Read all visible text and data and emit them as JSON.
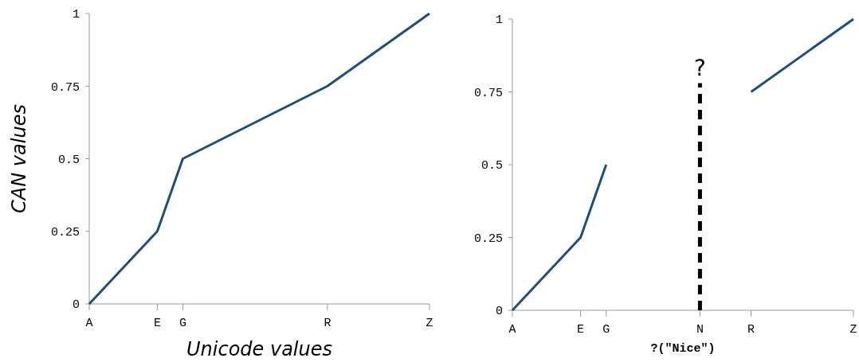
{
  "chart_data": [
    {
      "type": "line",
      "xlabel": "Unicode values",
      "ylabel": "CAN values",
      "categories": [
        "A",
        null,
        null,
        null,
        null,
        null,
        null,
        null,
        "E",
        null,
        null,
        "G",
        null,
        null,
        null,
        null,
        null,
        null,
        null,
        null,
        null,
        null,
        null,
        null,
        null,
        null,
        null,
        null,
        "R",
        null,
        null,
        null,
        null,
        null,
        null,
        null,
        null,
        null,
        null,
        null,
        "Z"
      ],
      "ylim": [
        0,
        1
      ],
      "yticks": [
        0,
        0.25,
        0.5,
        0.75,
        1
      ],
      "series": [
        {
          "color": "#1f4e79",
          "values": [
            0,
            null,
            null,
            null,
            null,
            null,
            null,
            null,
            0.25,
            null,
            null,
            0.5,
            null,
            null,
            null,
            null,
            null,
            null,
            null,
            null,
            null,
            null,
            null,
            null,
            null,
            null,
            null,
            null,
            0.75,
            null,
            null,
            null,
            null,
            null,
            null,
            null,
            null,
            null,
            null,
            null,
            1
          ]
        }
      ]
    },
    {
      "type": "line",
      "xlabel": "?(\"Nice\")",
      "categories": [
        "A",
        null,
        null,
        null,
        null,
        null,
        null,
        null,
        "E",
        null,
        null,
        "G",
        null,
        null,
        null,
        null,
        null,
        null,
        null,
        null,
        null,
        null,
        "N",
        null,
        null,
        null,
        null,
        null,
        "R",
        null,
        null,
        null,
        null,
        null,
        null,
        null,
        null,
        null,
        null,
        null,
        "Z"
      ],
      "ylim": [
        0,
        1
      ],
      "yticks": [
        0,
        0.25,
        0.5,
        0.75,
        1
      ],
      "series": [
        {
          "color": "#1f4e79",
          "values": [
            0,
            null,
            null,
            null,
            null,
            null,
            null,
            null,
            0.25,
            null,
            null,
            0.5,
            null,
            null,
            null,
            null,
            null,
            null,
            null,
            null,
            null,
            null,
            null,
            null,
            null,
            null,
            null,
            null,
            null,
            null,
            null,
            null,
            null,
            null,
            null,
            null,
            null,
            null,
            null,
            null,
            null
          ]
        },
        {
          "color": "#1f4e79",
          "values": [
            null,
            null,
            null,
            null,
            null,
            null,
            null,
            null,
            null,
            null,
            null,
            null,
            null,
            null,
            null,
            null,
            null,
            null,
            null,
            null,
            null,
            null,
            null,
            null,
            null,
            null,
            null,
            null,
            0.75,
            null,
            null,
            null,
            null,
            null,
            null,
            null,
            null,
            null,
            null,
            null,
            1
          ]
        }
      ],
      "ref_lines": [
        {
          "axis": "x",
          "value": "N",
          "label": "?",
          "line_style": "dashed",
          "color": "#000000"
        }
      ]
    }
  ]
}
